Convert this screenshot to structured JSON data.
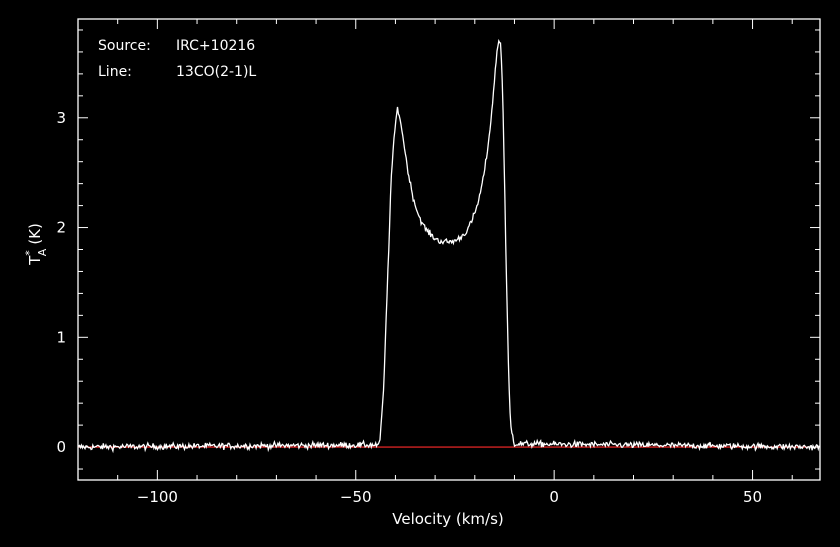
{
  "chart_data": {
    "type": "line",
    "annotations": [
      {
        "key": "Source:",
        "value": "IRC+10216"
      },
      {
        "key": "Line:",
        "value": "13CO(2-1)L"
      }
    ],
    "xlabel": "Velocity (km/s)",
    "ylabel": {
      "base": "T",
      "superscript": "*",
      "subscript": "A",
      "unit": "(K)"
    },
    "xlim": [
      -120,
      67
    ],
    "ylim": [
      -0.3,
      3.9
    ],
    "xticks": [
      -100,
      -50,
      0,
      50
    ],
    "xtick_labels": [
      "−100",
      "−50",
      "0",
      "50"
    ],
    "yticks": [
      0,
      1,
      2,
      3
    ],
    "ytick_labels": [
      "0",
      "1",
      "2",
      "3"
    ],
    "grid": false,
    "colors": {
      "background": "#000000",
      "axes": "#ffffff",
      "spectrum": "#ffffff",
      "baseline": "#ff2a2a"
    },
    "baseline_value": 0,
    "series": [
      {
        "x": [
          -120,
          -44,
          -43,
          -42,
          -41,
          -40,
          -39.5,
          -39,
          -38,
          -37,
          -36,
          -35,
          -34,
          -33,
          -32,
          -31,
          -30,
          -29,
          -28,
          -27,
          -26,
          -25,
          -24,
          -23,
          -22,
          -21,
          -20,
          -19,
          -18,
          -17,
          -16,
          -15,
          -14.5,
          -14,
          -13.5,
          -13,
          -12.5,
          -12,
          -11.5,
          -11,
          -10,
          67
        ],
        "values": [
          0,
          0.02,
          0.5,
          1.5,
          2.5,
          2.95,
          3.08,
          3.03,
          2.8,
          2.55,
          2.35,
          2.2,
          2.1,
          2.02,
          1.97,
          1.93,
          1.9,
          1.88,
          1.87,
          1.87,
          1.87,
          1.88,
          1.9,
          1.93,
          1.97,
          2.04,
          2.13,
          2.25,
          2.42,
          2.65,
          2.95,
          3.35,
          3.58,
          3.7,
          3.68,
          3.3,
          2.4,
          1.5,
          0.7,
          0.2,
          0.03,
          0
        ]
      }
    ],
    "noise_rms": 0.02
  }
}
